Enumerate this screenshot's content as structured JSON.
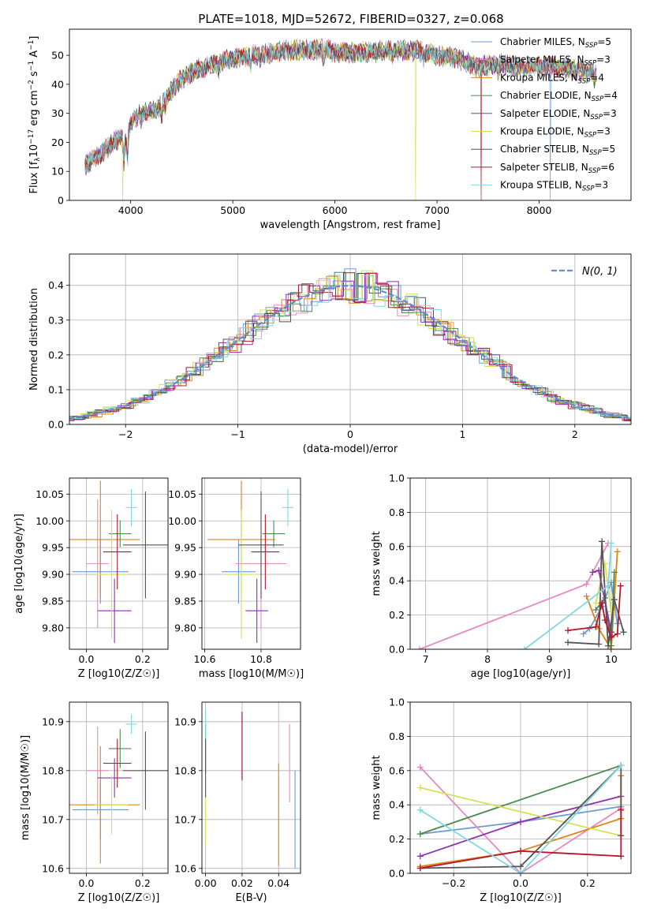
{
  "figure": {
    "title": "PLATE=1018, MJD=52672, FIBERID=0327, z=0.068"
  },
  "legend_entries": [
    {
      "name": "Chabrier MILES, N",
      "sub": "SSP",
      "suffix": "=5",
      "color": "#6b9bd2"
    },
    {
      "name": "Salpeter MILES, N",
      "sub": "SSP",
      "suffix": "=3",
      "color": "#e78ac3"
    },
    {
      "name": "Kroupa MILES, N",
      "sub": "SSP",
      "suffix": "=4",
      "color": "#e08214"
    },
    {
      "name": "Chabrier ELODIE, N",
      "sub": "SSP",
      "suffix": "=4",
      "color": "#4d8b4d"
    },
    {
      "name": "Salpeter ELODIE, N",
      "sub": "SSP",
      "suffix": "=3",
      "color": "#8e2fb0"
    },
    {
      "name": "Kroupa ELODIE, N",
      "sub": "SSP",
      "suffix": "=3",
      "color": "#d4e157"
    },
    {
      "name": "Chabrier STELIB, N",
      "sub": "SSP",
      "suffix": "=5",
      "color": "#555555"
    },
    {
      "name": "Salpeter STELIB, N",
      "sub": "SSP",
      "suffix": "=6",
      "color": "#b2182b"
    },
    {
      "name": "Kroupa STELIB, N",
      "sub": "SSP",
      "suffix": "=3",
      "color": "#80d8e0"
    }
  ],
  "chart_data": [
    {
      "type": "line",
      "id": "spectrum",
      "xlabel": "wavelength [Angstrom, rest frame]",
      "ylabel_parts": {
        "main": "Flux [f",
        "sub": "λ",
        "mid": "10",
        "sup1": "−17",
        "tail": " erg cm",
        "sup2": "−2",
        "tail2": " s",
        "sup3": "−1",
        "tail3": " A",
        "sup4": "−1",
        "end": "]"
      },
      "xlim": [
        3400,
        8900
      ],
      "ylim": [
        0,
        59
      ],
      "xticks": [
        4000,
        5000,
        6000,
        7000,
        8000
      ],
      "yticks": [
        0,
        10,
        20,
        30,
        40,
        50
      ],
      "continuum_knots": [
        [
          3550,
          12
        ],
        [
          3700,
          16
        ],
        [
          3900,
          22
        ],
        [
          3950,
          20
        ],
        [
          4000,
          27
        ],
        [
          4100,
          30
        ],
        [
          4250,
          31
        ],
        [
          4300,
          33
        ],
        [
          4400,
          38
        ],
        [
          4500,
          42
        ],
        [
          4600,
          44
        ],
        [
          4800,
          47
        ],
        [
          5000,
          49
        ],
        [
          5200,
          50
        ],
        [
          5500,
          51.5
        ],
        [
          5800,
          52
        ],
        [
          5900,
          52
        ],
        [
          6000,
          51
        ],
        [
          6300,
          51
        ],
        [
          6600,
          52
        ],
        [
          6800,
          51.5
        ],
        [
          7000,
          50
        ],
        [
          7200,
          49
        ],
        [
          7400,
          46
        ],
        [
          7600,
          47
        ],
        [
          7800,
          46
        ],
        [
          8000,
          46
        ],
        [
          8200,
          46
        ],
        [
          8400,
          45
        ],
        [
          8560,
          44
        ]
      ],
      "absorption_lines": [
        [
          3934,
          8
        ],
        [
          3969,
          8
        ],
        [
          4101,
          3
        ],
        [
          4304,
          5
        ],
        [
          4340,
          3
        ],
        [
          4861,
          3
        ],
        [
          5175,
          4
        ],
        [
          5270,
          2
        ],
        [
          5890,
          4
        ],
        [
          6563,
          3
        ],
        [
          6870,
          2
        ],
        [
          7600,
          3
        ],
        [
          8542,
          3
        ]
      ],
      "dropouts": [
        {
          "x": 3920,
          "series": 5
        },
        {
          "x": 6790,
          "series": 5
        },
        {
          "x": 7430,
          "series": 7
        },
        {
          "x": 8110,
          "series": 0
        }
      ]
    },
    {
      "type": "step-histogram",
      "id": "residuals",
      "xlabel": "(data-model)/error",
      "ylabel": "Normed distribution",
      "xlim": [
        -2.5,
        2.5
      ],
      "ylim": [
        0,
        0.49
      ],
      "xticks": [
        -2,
        -1,
        0,
        1,
        2
      ],
      "yticks": [
        0.0,
        0.1,
        0.2,
        0.3,
        0.4
      ],
      "bin_width": 0.1,
      "reference": {
        "label": "N(0, 1)",
        "mu": 0,
        "sigma": 1,
        "color": "#5b8fd9"
      }
    },
    {
      "type": "errorbar",
      "id": "age-vs-Z",
      "xlabel": "Z [log10(Z/Z☉)]",
      "ylabel": "age [log10(age/yr)]",
      "xlim": [
        -0.06,
        0.29
      ],
      "ylim": [
        9.76,
        10.08
      ],
      "xticks": [
        0.0,
        0.2
      ],
      "yticks": [
        9.8,
        9.85,
        9.9,
        9.95,
        10.0,
        10.05
      ],
      "points": [
        {
          "x": 0.05,
          "xerr": 0.1,
          "y": 9.905,
          "yerr": 0.06
        },
        {
          "x": 0.04,
          "xerr": 0.04,
          "y": 9.92,
          "yerr": 0.12
        },
        {
          "x": 0.05,
          "xerr": 0.14,
          "y": 9.965,
          "yerr": 0.11
        },
        {
          "x": 0.12,
          "xerr": 0.04,
          "y": 9.976,
          "yerr": 0.025
        },
        {
          "x": 0.1,
          "xerr": 0.06,
          "y": 9.832,
          "yerr": 0.06
        },
        {
          "x": 0.09,
          "xerr": 0.06,
          "y": 9.9,
          "yerr": 0.12
        },
        {
          "x": 0.21,
          "xerr": 0.08,
          "y": 9.955,
          "yerr": 0.1
        },
        {
          "x": 0.11,
          "xerr": 0.05,
          "y": 9.942,
          "yerr": 0.07
        },
        {
          "x": 0.16,
          "xerr": 0.02,
          "y": 10.025,
          "yerr": 0.035
        }
      ]
    },
    {
      "type": "errorbar",
      "id": "age-vs-mass",
      "xlabel": "mass [log10(M/M☉)]",
      "ylabel": "",
      "xlim": [
        10.59,
        10.94
      ],
      "ylim": [
        9.76,
        10.08
      ],
      "xticks": [
        10.6,
        10.8
      ],
      "yticks": [
        9.8,
        9.85,
        9.9,
        9.95,
        10.0,
        10.05
      ],
      "points": [
        {
          "x": 10.72,
          "xerr": 0.06,
          "y": 9.905,
          "yerr": 0.06
        },
        {
          "x": 10.8,
          "xerr": 0.09,
          "y": 9.92,
          "yerr": 0.12
        },
        {
          "x": 10.73,
          "xerr": 0.12,
          "y": 9.965,
          "yerr": 0.11
        },
        {
          "x": 10.845,
          "xerr": 0.04,
          "y": 9.976,
          "yerr": 0.025
        },
        {
          "x": 10.785,
          "xerr": 0.04,
          "y": 9.832,
          "yerr": 0.06
        },
        {
          "x": 10.73,
          "xerr": 0.06,
          "y": 9.9,
          "yerr": 0.12
        },
        {
          "x": 10.8,
          "xerr": 0.08,
          "y": 9.955,
          "yerr": 0.1
        },
        {
          "x": 10.815,
          "xerr": 0.05,
          "y": 9.942,
          "yerr": 0.07
        },
        {
          "x": 10.895,
          "xerr": 0.02,
          "y": 10.025,
          "yerr": 0.035
        }
      ]
    },
    {
      "type": "line",
      "id": "weight-vs-age",
      "xlabel": "age [log10(age/yr)]",
      "ylabel": "mass weight",
      "xlim": [
        6.75,
        10.32
      ],
      "ylim": [
        0,
        1.0
      ],
      "xticks": [
        7,
        8,
        9,
        10
      ],
      "yticks": [
        0.0,
        0.2,
        0.4,
        0.6,
        0.8,
        1.0
      ],
      "series": [
        {
          "points": [
            [
              9.55,
              0.09
            ],
            [
              9.65,
              0.12
            ],
            [
              9.85,
              0.25
            ],
            [
              10.0,
              0.39
            ],
            [
              10.1,
              0.15
            ]
          ]
        },
        {
          "points": [
            [
              6.9,
              0.0
            ],
            [
              9.6,
              0.38
            ],
            [
              9.95,
              0.62
            ]
          ]
        },
        {
          "points": [
            [
              9.6,
              0.31
            ],
            [
              9.8,
              0.12
            ],
            [
              10.0,
              0.0
            ],
            [
              10.1,
              0.57
            ]
          ]
        },
        {
          "points": [
            [
              9.75,
              0.23
            ],
            [
              9.9,
              0.3
            ],
            [
              10.0,
              0.02
            ],
            [
              10.05,
              0.45
            ]
          ]
        },
        {
          "points": [
            [
              9.7,
              0.45
            ],
            [
              9.8,
              0.46
            ],
            [
              10.0,
              0.1
            ]
          ]
        },
        {
          "points": [
            [
              9.75,
              0.27
            ],
            [
              9.9,
              0.5
            ],
            [
              10.0,
              0.22
            ]
          ]
        },
        {
          "points": [
            [
              9.3,
              0.04
            ],
            [
              9.8,
              0.03
            ],
            [
              9.85,
              0.63
            ],
            [
              9.95,
              0.02
            ],
            [
              10.05,
              0.29
            ],
            [
              10.2,
              0.1
            ]
          ]
        },
        {
          "points": [
            [
              9.3,
              0.11
            ],
            [
              9.75,
              0.13
            ],
            [
              9.85,
              0.27
            ],
            [
              9.9,
              0.17
            ],
            [
              10.0,
              0.07
            ],
            [
              10.1,
              0.09
            ],
            [
              10.15,
              0.37
            ]
          ]
        },
        {
          "points": [
            [
              8.6,
              0.0
            ],
            [
              9.95,
              0.37
            ],
            [
              10.0,
              0.62
            ]
          ]
        }
      ]
    },
    {
      "type": "errorbar",
      "id": "mass-vs-Z",
      "xlabel": "Z [log10(Z/Z☉)]",
      "ylabel": "mass [log10(M/M☉)]",
      "xlim": [
        -0.06,
        0.29
      ],
      "ylim": [
        10.59,
        10.94
      ],
      "xticks": [
        0.0,
        0.2
      ],
      "yticks": [
        10.6,
        10.7,
        10.8,
        10.9
      ],
      "points": [
        {
          "x": 0.05,
          "xerr": 0.1,
          "y": 10.72,
          "yerr": 0.06
        },
        {
          "x": 0.04,
          "xerr": 0.04,
          "y": 10.8,
          "yerr": 0.09
        },
        {
          "x": 0.05,
          "xerr": 0.14,
          "y": 10.73,
          "yerr": 0.12
        },
        {
          "x": 0.12,
          "xerr": 0.04,
          "y": 10.845,
          "yerr": 0.04
        },
        {
          "x": 0.1,
          "xerr": 0.06,
          "y": 10.785,
          "yerr": 0.04
        },
        {
          "x": 0.09,
          "xerr": 0.06,
          "y": 10.73,
          "yerr": 0.06
        },
        {
          "x": 0.21,
          "xerr": 0.08,
          "y": 10.8,
          "yerr": 0.08
        },
        {
          "x": 0.11,
          "xerr": 0.05,
          "y": 10.815,
          "yerr": 0.05
        },
        {
          "x": 0.16,
          "xerr": 0.02,
          "y": 10.895,
          "yerr": 0.02
        }
      ]
    },
    {
      "type": "errorbar",
      "id": "mass-vs-ebv",
      "xlabel": "E(B-V)",
      "ylabel": "",
      "xlim": [
        -0.002,
        0.052
      ],
      "ylim": [
        10.59,
        10.94
      ],
      "xticks": [
        0.0,
        0.02,
        0.04
      ],
      "yticks": [
        10.6,
        10.7,
        10.8,
        10.9
      ],
      "points": [
        {
          "x": 0.049,
          "xerr": 0,
          "y": 10.7,
          "yerr": 0.1
        },
        {
          "x": 0.046,
          "xerr": 0,
          "y": 10.815,
          "yerr": 0.08
        },
        {
          "x": 0.04,
          "xerr": 0,
          "y": 10.71,
          "yerr": 0.105
        },
        {
          "x": 0.0,
          "xerr": 0,
          "y": 10.845,
          "yerr": 0.05
        },
        {
          "x": 0.02,
          "xerr": 0,
          "y": 10.85,
          "yerr": 0.07
        },
        {
          "x": 0.0,
          "xerr": 0,
          "y": 10.7,
          "yerr": 0.05
        },
        {
          "x": 0.0,
          "xerr": 0,
          "y": 10.805,
          "yerr": 0.06
        },
        {
          "x": 0.02,
          "xerr": 0,
          "y": 10.85,
          "yerr": 0.07
        },
        {
          "x": 0.0,
          "xerr": 0,
          "y": 10.895,
          "yerr": 0.03
        }
      ]
    },
    {
      "type": "line",
      "id": "weight-vs-Z",
      "xlabel": "Z [log10(Z/Z☉)]",
      "ylabel": "mass weight",
      "xlim": [
        -0.33,
        0.33
      ],
      "ylim": [
        0,
        1.0
      ],
      "xticks": [
        -0.2,
        0.0,
        0.2
      ],
      "yticks": [
        0.0,
        0.2,
        0.4,
        0.6,
        0.8,
        1.0
      ],
      "series": [
        {
          "points": [
            [
              -0.3,
              0.23
            ],
            [
              0.0,
              0.3
            ],
            [
              0.3,
              0.39
            ]
          ]
        },
        {
          "points": [
            [
              -0.3,
              0.62
            ],
            [
              0.0,
              0.0
            ],
            [
              0.3,
              0.38
            ]
          ]
        },
        {
          "points": [
            [
              -0.3,
              0.04
            ],
            [
              0.0,
              0.13
            ],
            [
              0.3,
              0.32
            ],
            [
              0.3,
              0.57
            ]
          ]
        },
        {
          "points": [
            [
              -0.3,
              0.23
            ],
            [
              0.3,
              0.63
            ]
          ]
        },
        {
          "points": [
            [
              -0.3,
              0.1
            ],
            [
              0.0,
              0.3
            ],
            [
              0.3,
              0.45
            ]
          ]
        },
        {
          "points": [
            [
              -0.3,
              0.5
            ],
            [
              0.3,
              0.22
            ]
          ]
        },
        {
          "points": [
            [
              -0.3,
              0.03
            ],
            [
              0.0,
              0.04
            ],
            [
              0.3,
              0.63
            ],
            [
              0.3,
              0.22
            ]
          ]
        },
        {
          "points": [
            [
              -0.3,
              0.03
            ],
            [
              0.0,
              0.13
            ],
            [
              0.3,
              0.1
            ],
            [
              0.3,
              0.37
            ]
          ]
        },
        {
          "points": [
            [
              -0.3,
              0.37
            ],
            [
              0.0,
              0.0
            ],
            [
              0.3,
              0.63
            ]
          ]
        }
      ]
    }
  ]
}
